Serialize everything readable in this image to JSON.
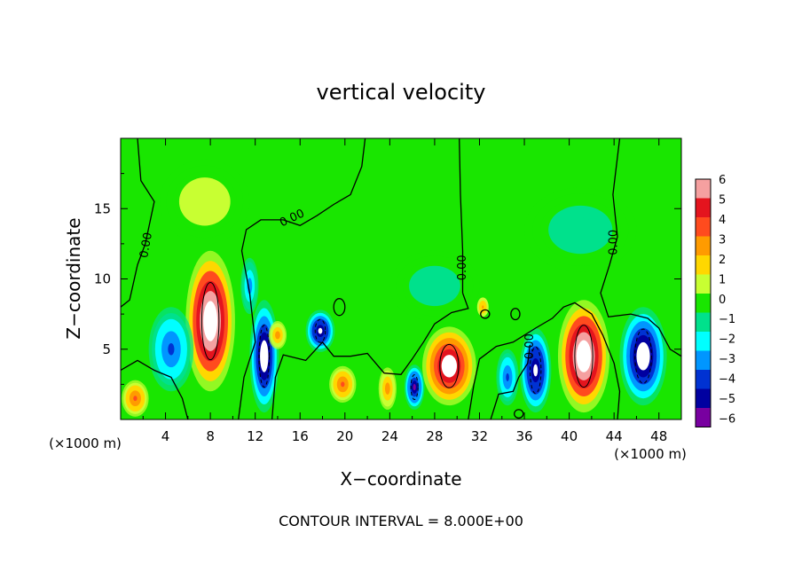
{
  "chart_data": {
    "type": "heatmap",
    "title": "vertical velocity",
    "xlabel": "X−coordinate",
    "ylabel": "Z−coordinate",
    "x_unit_left": "(×1000 m)",
    "x_unit_right": "(×1000 m)",
    "footer": "CONTOUR INTERVAL = 8.000E+00",
    "xlim": [
      0,
      50
    ],
    "ylim": [
      0,
      20
    ],
    "x_ticks": [
      4,
      8,
      12,
      16,
      20,
      24,
      28,
      32,
      36,
      40,
      44,
      48
    ],
    "x_tick_labels": [
      "4",
      "8",
      "12",
      "16",
      "20",
      "24",
      "28",
      "32",
      "36",
      "40",
      "44",
      "48"
    ],
    "y_ticks": [
      5,
      10,
      15
    ],
    "y_tick_labels": [
      "5",
      "10",
      "15"
    ],
    "contour_label": "0.00",
    "colorbar": {
      "levels": [
        6,
        5,
        4,
        3,
        2,
        1,
        0,
        -1,
        -2,
        -3,
        -4,
        -5,
        -6
      ],
      "labels": [
        "6",
        "5",
        "4",
        "3",
        "2",
        "1",
        "0",
        "−1",
        "−2",
        "−3",
        "−4",
        "−5",
        "−6"
      ],
      "colors": [
        "#f5a0a0",
        "#e4141e",
        "#ff4b1e",
        "#ff9b00",
        "#ffd700",
        "#c8ff32",
        "#19e600",
        "#00e18c",
        "#00ffff",
        "#0096ff",
        "#0032d2",
        "#0000a0",
        "#7800a0"
      ]
    },
    "features": [
      {
        "kind": "updraft",
        "x": 1.3,
        "z": 1.5,
        "rx": 1.2,
        "rz": 1.3,
        "strength": 4.5
      },
      {
        "kind": "updraft",
        "x": 8.0,
        "z": 7.0,
        "rx": 2.2,
        "rz": 5.0,
        "strength": 9.0
      },
      {
        "kind": "downdraft",
        "x": 4.5,
        "z": 5.0,
        "rx": 2.0,
        "rz": 3.0,
        "strength": -4.5
      },
      {
        "kind": "downdraft",
        "x": 12.8,
        "z": 4.5,
        "rx": 1.3,
        "rz": 4.0,
        "strength": -8.0
      },
      {
        "kind": "downdraft",
        "x": 11.5,
        "z": 9.5,
        "rx": 0.8,
        "rz": 2.0,
        "strength": -3.5
      },
      {
        "kind": "updraft",
        "x": 14.0,
        "z": 6.0,
        "rx": 0.8,
        "rz": 1.0,
        "strength": 3.5
      },
      {
        "kind": "downdraft",
        "x": 17.8,
        "z": 6.3,
        "rx": 1.3,
        "rz": 1.5,
        "strength": -7.0
      },
      {
        "kind": "updraft",
        "x": 19.8,
        "z": 2.5,
        "rx": 1.2,
        "rz": 1.3,
        "strength": 4.0
      },
      {
        "kind": "updraft",
        "x": 23.8,
        "z": 2.2,
        "rx": 0.8,
        "rz": 1.5,
        "strength": 3.5
      },
      {
        "kind": "downdraft",
        "x": 26.2,
        "z": 2.3,
        "rx": 0.9,
        "rz": 1.6,
        "strength": -6.5
      },
      {
        "kind": "updraft",
        "x": 29.3,
        "z": 3.8,
        "rx": 2.4,
        "rz": 2.8,
        "strength": 8.0
      },
      {
        "kind": "updraft",
        "x": 32.3,
        "z": 8.0,
        "rx": 0.6,
        "rz": 0.8,
        "strength": 3.0
      },
      {
        "kind": "downdraft",
        "x": 34.5,
        "z": 3.0,
        "rx": 1.0,
        "rz": 2.0,
        "strength": -4.0
      },
      {
        "kind": "downdraft",
        "x": 37.0,
        "z": 3.5,
        "rx": 1.4,
        "rz": 3.0,
        "strength": -7.0
      },
      {
        "kind": "updraft",
        "x": 41.3,
        "z": 4.5,
        "rx": 2.3,
        "rz": 4.0,
        "strength": 9.0
      },
      {
        "kind": "downdraft",
        "x": 46.6,
        "z": 4.5,
        "rx": 2.1,
        "rz": 3.5,
        "strength": -8.0
      },
      {
        "kind": "downdraft",
        "x": 41.0,
        "z": 13.5,
        "rx": 5.0,
        "rz": 3.0,
        "strength": -1.2
      },
      {
        "kind": "downdraft",
        "x": 28.0,
        "z": 9.5,
        "rx": 4.0,
        "rz": 2.5,
        "strength": -1.2
      },
      {
        "kind": "updraft",
        "x": 7.5,
        "z": 15.5,
        "rx": 4.0,
        "rz": 3.0,
        "strength": 1.2
      }
    ]
  }
}
